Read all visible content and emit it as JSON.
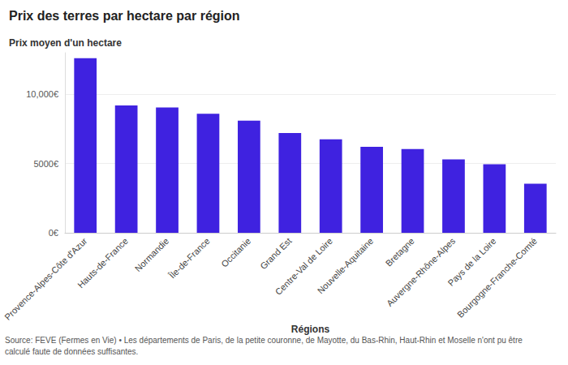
{
  "chart_data": {
    "type": "bar",
    "title": "Prix des terres par hectare par région",
    "subtitle": "Prix moyen d'un hectare",
    "x_label": "Régions",
    "source": "Source: FEVE (Fermes en Vie) • Les départements de Paris, de la petite couronne, de Mayotte, du Bas-Rhin, Haut-Rhin et Moselle n'ont pu être calculé faute de données suffisantes.",
    "categories": [
      "Provence-Alpes-Côte d'Azur",
      "Hauts-de-France",
      "Normandie",
      "Île-de-France",
      "Occitanie",
      "Grand Est",
      "Centre-Val de Loire",
      "Nouvelle-Aquitaine",
      "Bretagne",
      "Auvergne-Rhône-Alpes",
      "Pays de la Loire",
      "Bourgogne-Franche-Comté"
    ],
    "values": [
      12600,
      9200,
      9050,
      8600,
      8100,
      7200,
      6750,
      6200,
      6050,
      5300,
      4950,
      3550
    ],
    "color": "#3f22e0",
    "ylim": [
      0,
      13000
    ],
    "yticks": [
      {
        "value": 0,
        "label": "0€"
      },
      {
        "value": 5000,
        "label": "5000€"
      },
      {
        "value": 10000,
        "label": "10,000€"
      }
    ],
    "grid": true
  }
}
